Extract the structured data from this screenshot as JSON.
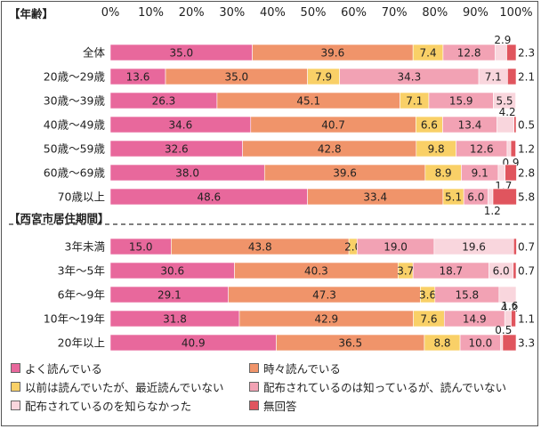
{
  "chart_data": {
    "type": "bar",
    "orientation": "horizontal",
    "stacked": true,
    "xlim": [
      0,
      100
    ],
    "x_ticks": [
      "0%",
      "10%",
      "20%",
      "30%",
      "40%",
      "50%",
      "60%",
      "70%",
      "80%",
      "90%",
      "100%"
    ],
    "grid": false,
    "legend_position": "bottom",
    "series": [
      {
        "name": "よく読んでいる",
        "color": "#E8689C"
      },
      {
        "name": "時々読んでいる",
        "color": "#F0946A"
      },
      {
        "name": "以前は読んでいたが、最近読んでいない",
        "color": "#F9D067"
      },
      {
        "name": "配布されているのは知っているが、読んでいない",
        "color": "#F2A2B4"
      },
      {
        "name": "配布されているのを知らなかった",
        "color": "#F9D6DD"
      },
      {
        "name": "無回答",
        "color": "#E0555E"
      }
    ],
    "groups": [
      {
        "title": "【年齢】",
        "rows": [
          {
            "label": "全体",
            "values": [
              35.0,
              39.6,
              7.4,
              12.8,
              2.9,
              2.3
            ]
          },
          {
            "label": "20歳～29歳",
            "values": [
              13.6,
              35.0,
              7.9,
              34.3,
              7.1,
              2.1
            ]
          },
          {
            "label": "30歳～39歳",
            "values": [
              26.3,
              45.1,
              7.1,
              15.9,
              5.5,
              0
            ]
          },
          {
            "label": "40歳～49歳",
            "values": [
              34.6,
              40.7,
              6.6,
              13.4,
              4.2,
              0.5
            ]
          },
          {
            "label": "50歳～59歳",
            "values": [
              32.6,
              42.8,
              9.8,
              12.6,
              0.9,
              1.2
            ]
          },
          {
            "label": "60歳～69歳",
            "values": [
              38.0,
              39.6,
              8.9,
              9.1,
              1.7,
              2.8
            ]
          },
          {
            "label": "70歳以上",
            "values": [
              48.6,
              33.4,
              5.1,
              6.0,
              1.2,
              5.8
            ]
          }
        ]
      },
      {
        "title": "【西宮市居住期間】",
        "rows": [
          {
            "label": "3年未満",
            "values": [
              15.0,
              43.8,
              2.0,
              19.0,
              19.6,
              0.7
            ]
          },
          {
            "label": "3年～5年",
            "values": [
              30.6,
              40.3,
              3.7,
              18.7,
              6.0,
              0.7
            ]
          },
          {
            "label": "6年～9年",
            "values": [
              29.1,
              47.3,
              3.6,
              15.8,
              4.2,
              0
            ]
          },
          {
            "label": "10年～19年",
            "values": [
              31.8,
              42.9,
              7.6,
              14.9,
              1.6,
              1.1
            ]
          },
          {
            "label": "20年以上",
            "values": [
              40.9,
              36.5,
              8.8,
              10.0,
              0.5,
              3.3
            ]
          }
        ]
      }
    ],
    "data_labels": [
      [
        "35.0",
        "39.6",
        "7.4",
        "12.8",
        "2.9",
        "2.3"
      ],
      [
        "13.6",
        "35.0",
        "7.9",
        "34.3",
        "7.1",
        "2.1"
      ],
      [
        "26.3",
        "45.1",
        "7.1",
        "15.9",
        "5.5",
        ""
      ],
      [
        "34.6",
        "40.7",
        "6.6",
        "13.4",
        "4.2",
        "0.5"
      ],
      [
        "32.6",
        "42.8",
        "9.8",
        "12.6",
        "0.9",
        "1.2"
      ],
      [
        "38.0",
        "39.6",
        "8.9",
        "9.1",
        "1.7",
        "2.8"
      ],
      [
        "48.6",
        "33.4",
        "5.1",
        "6.0",
        "1.2",
        "5.8"
      ],
      [
        "15.0",
        "43.8",
        "2.0",
        "19.0",
        "19.6",
        "0.7"
      ],
      [
        "30.6",
        "40.3",
        "3.7",
        "18.7",
        "6.0",
        "0.7"
      ],
      [
        "29.1",
        "47.3",
        "3.6",
        "15.8",
        "4.2",
        ""
      ],
      [
        "31.8",
        "42.9",
        "7.6",
        "14.9",
        "1.6",
        "1.1"
      ],
      [
        "40.9",
        "36.5",
        "8.8",
        "10.0",
        "0.5",
        "3.3"
      ]
    ]
  },
  "legend": {
    "items": [
      {
        "label": "よく読んでいる",
        "color": "#E8689C"
      },
      {
        "label": "時々読んでいる",
        "color": "#F0946A"
      },
      {
        "label": "以前は読んでいたが、最近読んでいない",
        "color": "#F9D067"
      },
      {
        "label": "配布されているのは知っているが、読んでいない",
        "color": "#F2A2B4"
      },
      {
        "label": "配布されているのを知らなかった",
        "color": "#F9D6DD"
      },
      {
        "label": "無回答",
        "color": "#E0555E"
      }
    ]
  }
}
